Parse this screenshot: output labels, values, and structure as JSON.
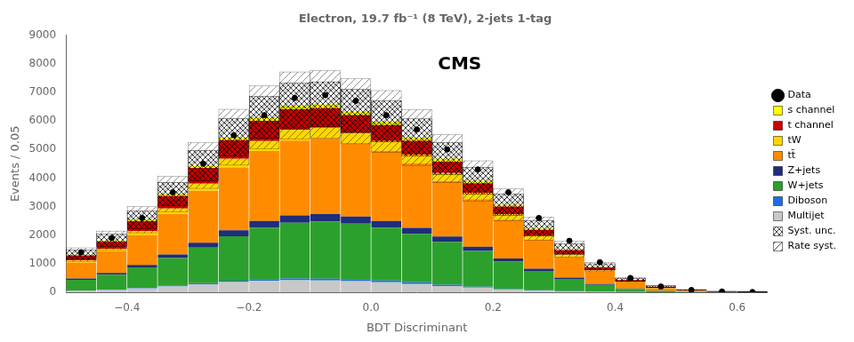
{
  "chart_data": {
    "type": "histogram",
    "title": "Electron, 19.7 fb⁻¹ (8 TeV), 2-jets 1-tag",
    "xlabel": "BDT Discriminant",
    "ylabel": "Events / 0.05",
    "bins": [
      -0.5,
      -0.45,
      -0.4,
      -0.35,
      -0.3,
      -0.25,
      -0.2,
      -0.15,
      -0.1,
      -0.05,
      0.0,
      0.05,
      0.1,
      0.15,
      0.2,
      0.25,
      0.3,
      0.35,
      0.4,
      0.45,
      0.5,
      0.55,
      0.6,
      0.65
    ],
    "stacked": true,
    "series": [
      {
        "name": "Multijet",
        "type": "bar",
        "color": "#c8c8c8",
        "values": [
          50,
          80,
          130,
          200,
          280,
          360,
          400,
          420,
          410,
          390,
          350,
          290,
          220,
          160,
          100,
          55,
          25,
          12,
          4,
          1,
          0,
          0,
          0
        ]
      },
      {
        "name": "Diboson",
        "type": "bar",
        "color": "#1e6ede",
        "values": [
          8,
          12,
          18,
          25,
          35,
          48,
          58,
          62,
          65,
          65,
          62,
          58,
          48,
          35,
          25,
          18,
          10,
          5,
          2,
          1,
          0,
          0,
          0
        ]
      },
      {
        "name": "W+jets",
        "type": "bar",
        "color": "#2ca02c",
        "values": [
          380,
          520,
          720,
          970,
          1250,
          1550,
          1800,
          1950,
          2000,
          1950,
          1850,
          1700,
          1500,
          1250,
          950,
          670,
          430,
          240,
          110,
          45,
          18,
          4,
          1
        ]
      },
      {
        "name": "Z+jets",
        "type": "bar",
        "color": "#1f2d7a",
        "values": [
          45,
          65,
          90,
          130,
          170,
          210,
          240,
          260,
          260,
          250,
          230,
          210,
          180,
          150,
          110,
          78,
          50,
          28,
          13,
          5,
          2,
          1,
          0
        ]
      },
      {
        "name": "tt̄",
        "type": "bar",
        "color": "#ff8c00",
        "values": [
          550,
          750,
          1050,
          1420,
          1820,
          2200,
          2450,
          2620,
          2650,
          2560,
          2460,
          2250,
          1950,
          1660,
          1360,
          1020,
          720,
          430,
          210,
          95,
          38,
          14,
          4
        ]
      },
      {
        "name": "tW",
        "type": "bar",
        "color": "#ffd700",
        "values": [
          75,
          100,
          140,
          185,
          245,
          305,
          345,
          375,
          375,
          365,
          345,
          315,
          278,
          230,
          182,
          132,
          88,
          50,
          23,
          9,
          3,
          1,
          0
        ]
      },
      {
        "name": "t channel",
        "type": "bar",
        "color": "#cc0000",
        "values": [
          180,
          250,
          340,
          440,
          550,
          650,
          710,
          720,
          685,
          625,
          558,
          478,
          398,
          330,
          272,
          212,
          155,
          105,
          66,
          38,
          18,
          7,
          2
        ]
      },
      {
        "name": "s channel",
        "type": "bar",
        "color": "#ffff00",
        "values": [
          28,
          38,
          50,
          65,
          85,
          105,
          118,
          128,
          132,
          132,
          128,
          118,
          105,
          85,
          66,
          47,
          32,
          18,
          9,
          4,
          1,
          0,
          0
        ]
      },
      {
        "name": "Syst. unc.",
        "type": "band",
        "errors": [
          157.92,
          217.8,
          304.56,
          412.2,
          532.2,
          651.36,
          734.52,
          784.2,
          789.24,
          760.44,
          717.96,
          650.28,
          561.48,
          468,
          367.8,
          267.84,
          181.2,
          106.56,
          52.44,
          23.76,
          9.6,
          3.24,
          0.84
        ]
      },
      {
        "name": "Rate syst.",
        "type": "band",
        "errors": [
          236.88,
          326.7,
          456.84,
          618.3,
          798.3,
          977.04,
          1101.78,
          1176.3,
          1183.86,
          1140.66,
          1076.94,
          975.42,
          842.22,
          702,
          551.7,
          401.76,
          271.8,
          159.84,
          78.66,
          35.64,
          14.4,
          4.86,
          1.26
        ]
      },
      {
        "name": "Data",
        "type": "scatter",
        "color": "#000000",
        "marker": "circle",
        "values": [
          1400,
          1900,
          2600,
          3500,
          4500,
          5500,
          6200,
          6800,
          6900,
          6700,
          6200,
          5700,
          5000,
          4300,
          3500,
          2600,
          1800,
          1050,
          500,
          200,
          78,
          25,
          7
        ],
        "errors": [
          37.43,
          43.6,
          51.01,
          59.17,
          67.09,
          74.17,
          78.75,
          82.47,
          83.07,
          81.86,
          78.75,
          75.5,
          70.72,
          65.58,
          59.17,
          51.01,
          42.44,
          32.42,
          22.38,
          14.18,
          8.89,
          5.1,
          2.83
        ]
      }
    ],
    "annotations": [
      {
        "text": "CMS"
      }
    ],
    "xlim": [
      -0.5,
      0.65
    ],
    "xticks": [
      {
        "value": -0.4,
        "label": "−0.4"
      },
      {
        "value": -0.2,
        "label": "−0.2"
      },
      {
        "value": 0.0,
        "label": "0.0"
      },
      0.2,
      0.4,
      0.6
    ],
    "ylim": [
      0,
      9000
    ],
    "yticks": [
      0,
      1000,
      2000,
      3000,
      4000,
      5000,
      6000,
      7000,
      8000,
      9000
    ],
    "grid": false,
    "legend": "right"
  }
}
